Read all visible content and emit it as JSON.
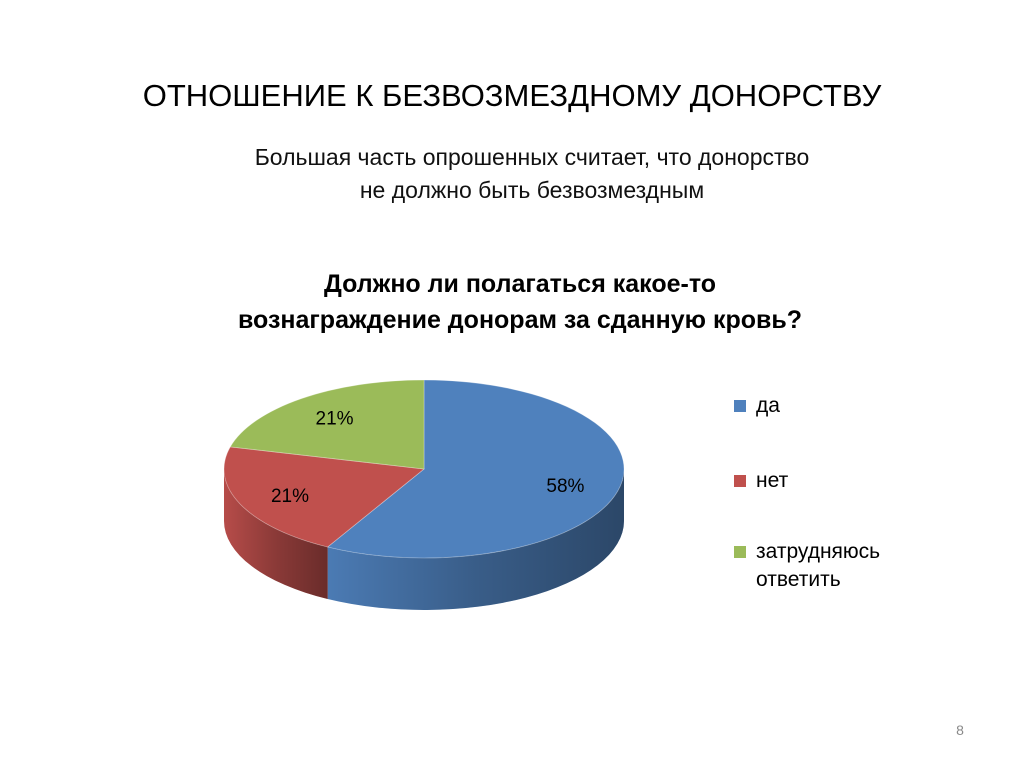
{
  "slide": {
    "title": "ОТНОШЕНИЕ К БЕЗВОЗМЕЗДНОМУ ДОНОРСТВУ",
    "subtitle_lines": [
      "Большая часть опрошенных считает, что донорство",
      "не должно быть безвозмездным"
    ],
    "page_number": "8"
  },
  "chart_data": {
    "type": "pie",
    "title_lines": [
      "Должно ли полагаться какое-то",
      "вознаграждение донорам за сданную кровь?"
    ],
    "categories": [
      {
        "label_lines": [
          "да"
        ],
        "value": 58,
        "value_label": "58%",
        "color": "#4f81bd"
      },
      {
        "label_lines": [
          "нет"
        ],
        "value": 21,
        "value_label": "21%",
        "color": "#c0504d"
      },
      {
        "label_lines": [
          "затрудняюсь",
          "ответить"
        ],
        "value": 21,
        "value_label": "21%",
        "color": "#9bbb59"
      }
    ],
    "legend_position": "right",
    "style": "3d"
  }
}
